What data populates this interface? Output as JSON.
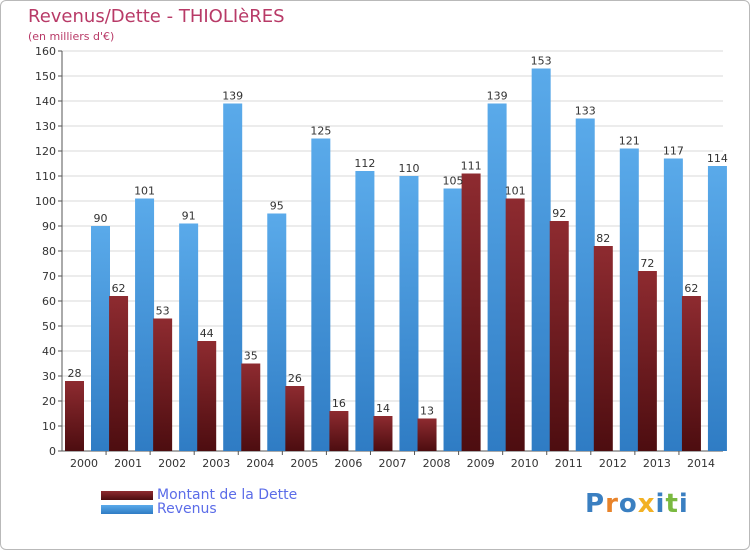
{
  "colors": {
    "debt": "#7b2025",
    "revenue": "#4f9ee3",
    "title": "#b83a67",
    "legend_text": "#5b6ce8",
    "grid": "#d8d8d8"
  },
  "chart_data": {
    "type": "bar",
    "title": "Revenus/Dette - THIOLIèRES",
    "subtitle": "(en milliers d'€)",
    "xlabel": "",
    "ylabel": "",
    "ylim": [
      0,
      160
    ],
    "ytick_step": 10,
    "grid": true,
    "legend_position": "bottom-left",
    "categories": [
      "2000",
      "2001",
      "2002",
      "2003",
      "2004",
      "2005",
      "2006",
      "2007",
      "2008",
      "2009",
      "2010",
      "2011",
      "2012",
      "2013",
      "2014"
    ],
    "series": [
      {
        "name": "Montant de la Dette",
        "key": "debt",
        "values": [
          28,
          62,
          53,
          44,
          35,
          26,
          16,
          14,
          13,
          111,
          101,
          92,
          82,
          72,
          62
        ]
      },
      {
        "name": "Revenus",
        "key": "revenue",
        "values": [
          90,
          101,
          91,
          139,
          95,
          125,
          112,
          110,
          105,
          139,
          153,
          133,
          121,
          117,
          114
        ]
      }
    ]
  },
  "logo": {
    "letters": [
      "P",
      "r",
      "o",
      "x",
      "i",
      "t",
      "i"
    ],
    "colors": [
      "#3a7fc1",
      "#e8832a",
      "#3a7fc1",
      "#f2b124",
      "#3a7fc1",
      "#7ab940",
      "#3a7fc1"
    ]
  }
}
